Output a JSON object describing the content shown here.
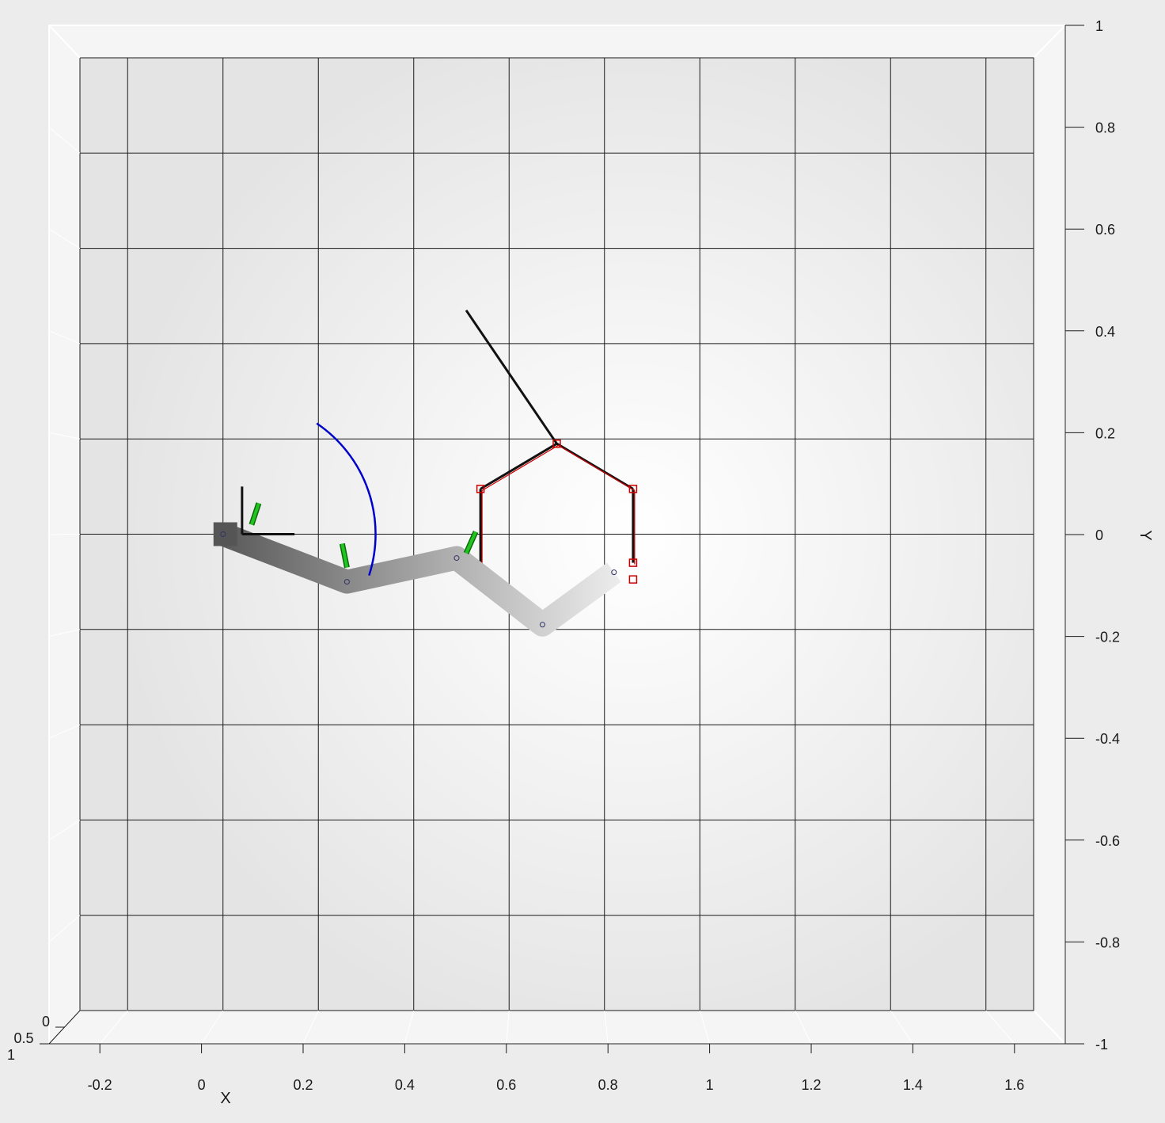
{
  "chart_data": {
    "type": "line",
    "title": "",
    "xlabel": "X",
    "ylabel": "Y",
    "xlim": [
      -0.3,
      1.7
    ],
    "ylim": [
      -1,
      1
    ],
    "zlim": [
      0,
      1
    ],
    "view": "3d-top",
    "grid": true,
    "x_ticks": [
      -0.2,
      0,
      0.2,
      0.4,
      0.6,
      0.8,
      1,
      1.2,
      1.4,
      1.6
    ],
    "x_tick_labels": [
      "-0.2",
      "0",
      "0.2",
      "0.4",
      "0.6",
      "0.8",
      "1",
      "1.2",
      "1.4",
      "1.6"
    ],
    "y_ticks": [
      1,
      0.8,
      0.6,
      0.4,
      0.2,
      0,
      -0.2,
      -0.4,
      -0.6,
      -0.8,
      -1
    ],
    "y_tick_labels": [
      "1",
      "0.8",
      "0.6",
      "0.4",
      "0.2",
      "0",
      "-0.2",
      "-0.4",
      "-0.6",
      "-0.8",
      "-1"
    ],
    "z_tick_labels": [
      "0",
      "0.5",
      "1"
    ],
    "robot_arm": {
      "joints": [
        [
          0,
          0
        ],
        [
          0.26,
          -0.1
        ],
        [
          0.49,
          -0.05
        ],
        [
          0.67,
          -0.19
        ],
        [
          0.82,
          -0.08
        ]
      ],
      "color_start": "#5a5a5a",
      "color_end": "#f4f4f4"
    },
    "joint_axes": [
      {
        "x": [
          0.06,
          0.075
        ],
        "y": [
          0.02,
          0.065
        ]
      },
      {
        "x": [
          0.26,
          0.25
        ],
        "y": [
          -0.07,
          -0.02
        ]
      },
      {
        "x": [
          0.51,
          0.53
        ],
        "y": [
          -0.04,
          0.005
        ]
      }
    ],
    "base_frame": {
      "origin": [
        0.04,
        0
      ],
      "x_axis_end": [
        0.15,
        0
      ],
      "y_axis_end": [
        0.04,
        0.1
      ]
    },
    "arc": {
      "cx": 0.04,
      "cy": 0,
      "r": 0.28,
      "start_deg": -18,
      "end_deg": 56,
      "color": "#0000cc"
    },
    "target_lines": [
      {
        "x": [
          0.51,
          0.7
        ],
        "y": [
          0.47,
          0.19
        ]
      },
      {
        "x": [
          0.7,
          0.54
        ],
        "y": [
          0.19,
          0.095
        ]
      },
      {
        "x": [
          0.7,
          0.86
        ],
        "y": [
          0.19,
          0.095
        ]
      },
      {
        "x": [
          0.86,
          0.86
        ],
        "y": [
          0.095,
          -0.06
        ]
      },
      {
        "x": [
          0.54,
          0.54
        ],
        "y": [
          0.095,
          -0.06
        ]
      }
    ],
    "target_markers": [
      [
        0.7,
        0.19
      ],
      [
        0.54,
        0.095
      ],
      [
        0.86,
        0.095
      ],
      [
        0.86,
        -0.06
      ],
      [
        0.86,
        -0.095
      ]
    ],
    "colors": {
      "axis_line": "#1a1a1a",
      "grid": "#1a1a1a",
      "marker": "#cc0000",
      "joint_axis": "#22c422"
    }
  }
}
